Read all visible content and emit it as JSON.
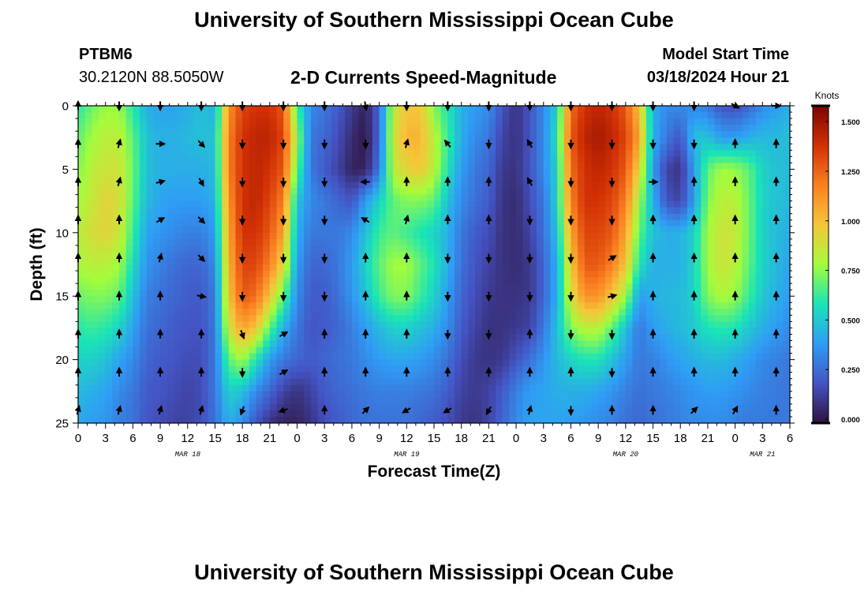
{
  "page": {
    "title_top": "University of Southern Mississippi Ocean Cube",
    "title_bottom": "University of Southern Mississippi Ocean Cube",
    "station_id": "PTBM6",
    "coordinates": "30.2120N  88.5050W",
    "subtitle": "2-D Currents Speed-Magnitude",
    "model_start_label": "Model Start Time",
    "model_start_value": "03/18/2024 Hour 21"
  },
  "chart_data": {
    "type": "heatmap",
    "title": "2-D Currents Speed-Magnitude",
    "xlabel": "Forecast Time(Z)",
    "ylabel": "Depth (ft)",
    "x_range_hours": [
      0,
      78
    ],
    "y_range_ft": [
      0,
      25
    ],
    "x_tick_labels": [
      "0",
      "3",
      "6",
      "9",
      "12",
      "15",
      "18",
      "21",
      "0",
      "3",
      "6",
      "9",
      "12",
      "15",
      "18",
      "21",
      "0",
      "3",
      "6",
      "9",
      "12",
      "15",
      "18",
      "21",
      "0",
      "3",
      "6"
    ],
    "x_tick_hours": [
      0,
      3,
      6,
      9,
      12,
      15,
      18,
      21,
      24,
      27,
      30,
      33,
      36,
      39,
      42,
      45,
      48,
      51,
      54,
      57,
      60,
      63,
      66,
      69,
      72,
      75,
      78
    ],
    "y_tick_labels": [
      "0",
      "5",
      "10",
      "15",
      "20",
      "25"
    ],
    "y_tick_values": [
      0,
      5,
      10,
      15,
      20,
      25
    ],
    "date_labels": [
      {
        "text": "MAR 18",
        "hour": 12
      },
      {
        "text": "MAR 19",
        "hour": 36
      },
      {
        "text": "MAR 20",
        "hour": 60
      },
      {
        "text": "MAR 21",
        "hour": 75
      }
    ],
    "colorbar": {
      "label": "Knots",
      "min": 0.0,
      "max": 1.6,
      "tick_labels": [
        "0.000",
        "0.250",
        "0.500",
        "0.750",
        "1.000",
        "1.250",
        "1.500"
      ],
      "tick_values": [
        0.0,
        0.25,
        0.5,
        0.75,
        1.0,
        1.25,
        1.5
      ],
      "colors": [
        "#30123b",
        "#4454c4",
        "#2f9df5",
        "#1ae4b6",
        "#a4fc3c",
        "#f5c63a",
        "#fb8022",
        "#d23105",
        "#7a0403"
      ]
    },
    "speed_columns_hours": [
      0,
      1.5,
      3,
      4.5,
      6,
      7.5,
      9,
      10.5,
      12,
      13.5,
      15,
      16.5,
      18,
      19.5,
      21,
      22.5,
      24,
      25.5,
      27,
      28.5,
      30,
      31.5,
      33,
      34.5,
      36,
      37.5,
      39,
      40.5,
      42,
      43.5,
      45,
      46.5,
      48,
      49.5,
      51,
      52.5,
      54,
      55.5,
      57,
      58.5,
      60,
      61.5,
      63,
      64.5,
      66,
      67.5,
      69,
      70.5,
      72,
      73.5,
      75,
      76.5,
      78
    ],
    "speed_rows_depth_ft": [
      0,
      2.5,
      5,
      7.5,
      10,
      12.5,
      15,
      17.5,
      20,
      22.5,
      25
    ],
    "speed_knots": [
      [
        0.62,
        0.72,
        0.78,
        0.78,
        0.62,
        0.45,
        0.42,
        0.42,
        0.45,
        0.5,
        0.45,
        1.15,
        1.35,
        1.4,
        1.4,
        1.3,
        0.65,
        0.35,
        0.3,
        0.22,
        0.12,
        0.05,
        0.25,
        0.85,
        1.0,
        1.0,
        0.75,
        0.6,
        0.45,
        0.4,
        0.35,
        0.2,
        0.1,
        0.2,
        0.35,
        0.55,
        1.25,
        1.4,
        1.45,
        1.4,
        1.3,
        1.0,
        0.45,
        0.35,
        0.35,
        0.35,
        0.3,
        0.2,
        0.18,
        0.25,
        0.35,
        0.4,
        0.45
      ],
      [
        0.7,
        0.8,
        0.85,
        0.85,
        0.7,
        0.5,
        0.45,
        0.45,
        0.48,
        0.5,
        0.5,
        1.2,
        1.4,
        1.45,
        1.45,
        1.35,
        0.8,
        0.3,
        0.25,
        0.18,
        0.08,
        0.02,
        0.25,
        0.9,
        1.05,
        1.05,
        0.85,
        0.65,
        0.45,
        0.35,
        0.3,
        0.15,
        0.1,
        0.2,
        0.35,
        0.6,
        1.3,
        1.45,
        1.5,
        1.45,
        1.35,
        1.1,
        0.45,
        0.3,
        0.2,
        0.5,
        0.5,
        0.4,
        0.4,
        0.45,
        0.48,
        0.48,
        0.5
      ],
      [
        0.75,
        0.85,
        0.9,
        0.9,
        0.72,
        0.5,
        0.45,
        0.45,
        0.45,
        0.45,
        0.48,
        1.2,
        1.4,
        1.45,
        1.4,
        1.3,
        0.7,
        0.3,
        0.22,
        0.15,
        0.05,
        0.05,
        0.3,
        0.85,
        0.95,
        1.0,
        0.85,
        0.6,
        0.4,
        0.3,
        0.25,
        0.12,
        0.1,
        0.2,
        0.35,
        0.55,
        1.25,
        1.4,
        1.45,
        1.4,
        1.3,
        0.95,
        0.4,
        0.15,
        0.1,
        0.4,
        0.7,
        0.8,
        0.78,
        0.7,
        0.55,
        0.5,
        0.48
      ],
      [
        0.8,
        0.88,
        0.95,
        0.92,
        0.7,
        0.48,
        0.42,
        0.4,
        0.4,
        0.4,
        0.45,
        1.15,
        1.4,
        1.45,
        1.35,
        1.2,
        0.5,
        0.35,
        0.3,
        0.25,
        0.2,
        0.4,
        0.55,
        0.7,
        0.75,
        0.75,
        0.7,
        0.5,
        0.35,
        0.28,
        0.22,
        0.1,
        0.08,
        0.18,
        0.3,
        0.55,
        1.2,
        1.4,
        1.4,
        1.35,
        1.2,
        0.8,
        0.45,
        0.2,
        0.15,
        0.4,
        0.75,
        0.85,
        0.85,
        0.72,
        0.55,
        0.5,
        0.48
      ],
      [
        0.85,
        0.92,
        0.95,
        0.9,
        0.65,
        0.42,
        0.38,
        0.35,
        0.32,
        0.32,
        0.4,
        1.1,
        1.4,
        1.4,
        1.3,
        1.1,
        0.45,
        0.3,
        0.3,
        0.3,
        0.35,
        0.5,
        0.65,
        0.7,
        0.65,
        0.6,
        0.55,
        0.45,
        0.3,
        0.22,
        0.18,
        0.1,
        0.08,
        0.15,
        0.28,
        0.5,
        1.1,
        1.35,
        1.35,
        1.3,
        1.1,
        0.7,
        0.5,
        0.45,
        0.45,
        0.55,
        0.8,
        0.9,
        0.88,
        0.72,
        0.55,
        0.48,
        0.45
      ],
      [
        0.82,
        0.85,
        0.85,
        0.8,
        0.58,
        0.38,
        0.32,
        0.28,
        0.25,
        0.25,
        0.35,
        1.05,
        1.35,
        1.35,
        1.2,
        0.95,
        0.4,
        0.25,
        0.25,
        0.3,
        0.4,
        0.55,
        0.7,
        0.8,
        0.8,
        0.7,
        0.6,
        0.45,
        0.28,
        0.2,
        0.15,
        0.1,
        0.08,
        0.12,
        0.25,
        0.45,
        1.0,
        1.3,
        1.3,
        1.2,
        1.0,
        0.6,
        0.45,
        0.45,
        0.45,
        0.55,
        0.8,
        0.9,
        0.85,
        0.7,
        0.55,
        0.48,
        0.42
      ],
      [
        0.72,
        0.75,
        0.75,
        0.7,
        0.5,
        0.32,
        0.28,
        0.25,
        0.22,
        0.22,
        0.3,
        1.0,
        1.3,
        1.25,
        1.0,
        0.7,
        0.35,
        0.22,
        0.22,
        0.28,
        0.38,
        0.5,
        0.65,
        0.75,
        0.75,
        0.65,
        0.55,
        0.4,
        0.25,
        0.18,
        0.12,
        0.1,
        0.1,
        0.12,
        0.25,
        0.45,
        0.9,
        1.15,
        1.15,
        1.0,
        0.8,
        0.4,
        0.45,
        0.48,
        0.48,
        0.55,
        0.75,
        0.82,
        0.78,
        0.65,
        0.52,
        0.45,
        0.4
      ],
      [
        0.62,
        0.65,
        0.62,
        0.55,
        0.42,
        0.28,
        0.25,
        0.22,
        0.2,
        0.2,
        0.3,
        0.9,
        1.1,
        1.0,
        0.7,
        0.45,
        0.3,
        0.2,
        0.22,
        0.25,
        0.32,
        0.4,
        0.48,
        0.55,
        0.55,
        0.5,
        0.45,
        0.35,
        0.22,
        0.15,
        0.1,
        0.1,
        0.12,
        0.15,
        0.3,
        0.5,
        0.75,
        0.85,
        0.85,
        0.7,
        0.5,
        0.3,
        0.4,
        0.45,
        0.48,
        0.52,
        0.6,
        0.62,
        0.6,
        0.52,
        0.45,
        0.4,
        0.35
      ],
      [
        0.55,
        0.55,
        0.5,
        0.42,
        0.35,
        0.25,
        0.22,
        0.2,
        0.18,
        0.18,
        0.3,
        0.7,
        0.8,
        0.6,
        0.4,
        0.3,
        0.25,
        0.22,
        0.25,
        0.28,
        0.3,
        0.35,
        0.4,
        0.42,
        0.42,
        0.4,
        0.35,
        0.28,
        0.18,
        0.12,
        0.1,
        0.12,
        0.2,
        0.28,
        0.38,
        0.48,
        0.55,
        0.6,
        0.6,
        0.5,
        0.4,
        0.3,
        0.32,
        0.38,
        0.42,
        0.45,
        0.48,
        0.48,
        0.45,
        0.4,
        0.35,
        0.32,
        0.3
      ],
      [
        0.48,
        0.45,
        0.42,
        0.35,
        0.3,
        0.22,
        0.2,
        0.18,
        0.15,
        0.18,
        0.3,
        0.55,
        0.5,
        0.35,
        0.25,
        0.15,
        0.1,
        0.15,
        0.22,
        0.25,
        0.28,
        0.3,
        0.32,
        0.32,
        0.32,
        0.3,
        0.28,
        0.22,
        0.15,
        0.12,
        0.15,
        0.22,
        0.32,
        0.4,
        0.42,
        0.45,
        0.45,
        0.45,
        0.42,
        0.38,
        0.32,
        0.28,
        0.3,
        0.32,
        0.35,
        0.38,
        0.4,
        0.4,
        0.38,
        0.35,
        0.32,
        0.3,
        0.3
      ],
      [
        0.42,
        0.4,
        0.38,
        0.32,
        0.28,
        0.2,
        0.18,
        0.15,
        0.15,
        0.18,
        0.28,
        0.45,
        0.35,
        0.2,
        0.1,
        0.05,
        0.05,
        0.1,
        0.18,
        0.22,
        0.25,
        0.28,
        0.28,
        0.28,
        0.28,
        0.25,
        0.22,
        0.18,
        0.12,
        0.1,
        0.15,
        0.25,
        0.35,
        0.42,
        0.42,
        0.42,
        0.4,
        0.38,
        0.35,
        0.32,
        0.28,
        0.25,
        0.28,
        0.3,
        0.32,
        0.35,
        0.35,
        0.35,
        0.32,
        0.3,
        0.3,
        0.3,
        0.3
      ]
    ],
    "arrow_columns_hours": [
      0,
      4.5,
      9,
      13.5,
      18,
      22.5,
      27,
      31.5,
      36,
      40.5,
      45,
      49.5,
      54,
      58.5,
      63,
      67.5,
      72,
      76.5
    ],
    "arrow_rows_depth_ft": [
      0,
      3,
      6,
      9,
      12,
      15,
      18,
      21,
      24
    ],
    "arrow_directions_deg_from_north": [
      [
        0,
        180,
        180,
        180,
        180,
        180,
        180,
        170,
        180,
        180,
        180,
        180,
        180,
        180,
        180,
        180,
        120,
        90
      ],
      [
        0,
        15,
        90,
        135,
        180,
        180,
        180,
        180,
        15,
        320,
        180,
        330,
        180,
        180,
        180,
        180,
        0,
        0
      ],
      [
        0,
        15,
        75,
        150,
        180,
        180,
        180,
        270,
        0,
        0,
        0,
        330,
        180,
        180,
        90,
        0,
        0,
        0
      ],
      [
        0,
        0,
        60,
        135,
        180,
        180,
        180,
        300,
        15,
        0,
        0,
        180,
        180,
        180,
        0,
        0,
        0,
        0
      ],
      [
        0,
        0,
        15,
        135,
        180,
        180,
        180,
        0,
        0,
        180,
        180,
        180,
        180,
        60,
        0,
        0,
        0,
        0
      ],
      [
        0,
        0,
        0,
        100,
        180,
        180,
        180,
        0,
        0,
        180,
        180,
        180,
        180,
        75,
        0,
        0,
        0,
        0
      ],
      [
        0,
        0,
        0,
        0,
        160,
        60,
        0,
        0,
        0,
        180,
        180,
        0,
        180,
        180,
        0,
        0,
        0,
        0
      ],
      [
        0,
        0,
        0,
        0,
        180,
        60,
        0,
        0,
        0,
        0,
        0,
        0,
        0,
        180,
        0,
        0,
        0,
        0
      ],
      [
        15,
        15,
        15,
        15,
        200,
        250,
        0,
        45,
        240,
        240,
        210,
        15,
        180,
        0,
        0,
        45,
        30,
        0
      ]
    ]
  }
}
